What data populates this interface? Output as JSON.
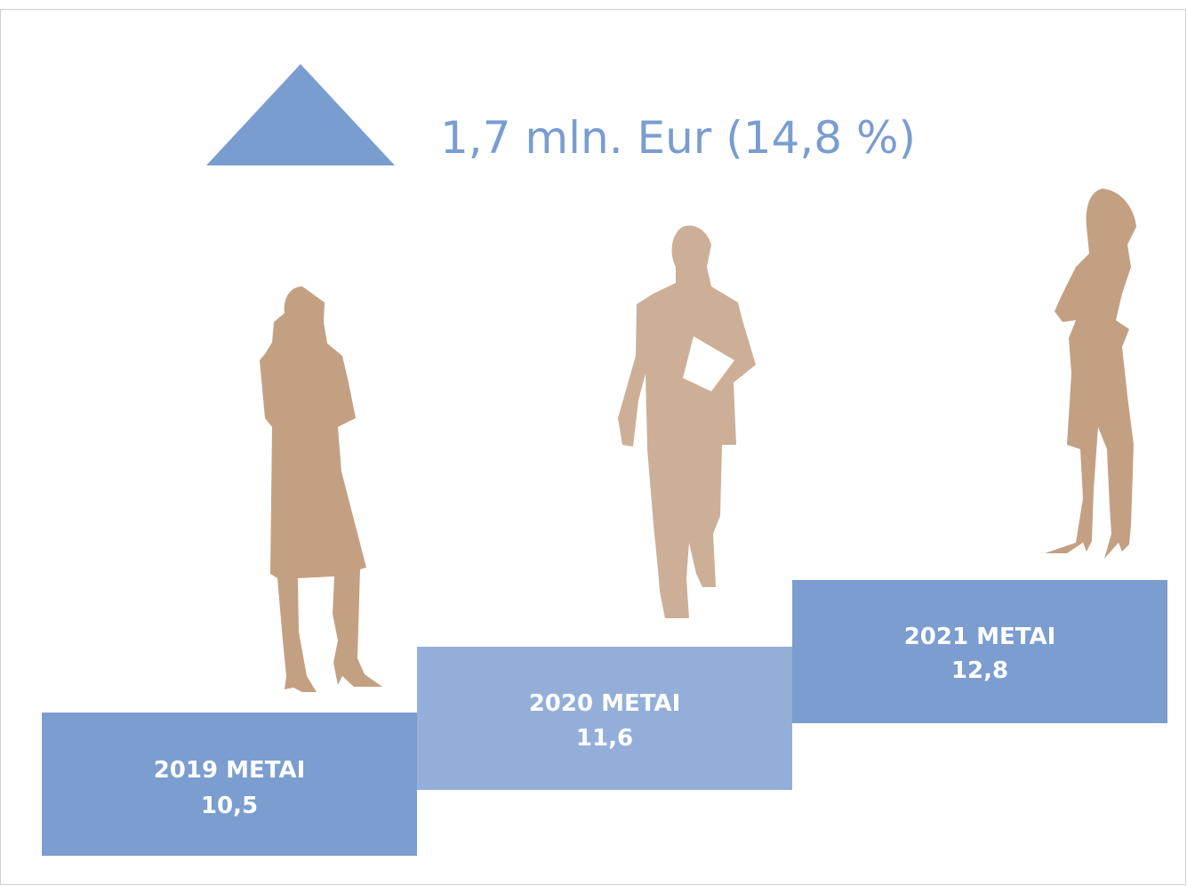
{
  "header": {
    "title": "1,7 mln. Eur (14,8 %)"
  },
  "steps": [
    {
      "label": "2019 METAI",
      "value": "10,5"
    },
    {
      "label": "2020 METAI",
      "value": "11,6"
    },
    {
      "label": "2021 METAI",
      "value": "12,8"
    }
  ]
}
